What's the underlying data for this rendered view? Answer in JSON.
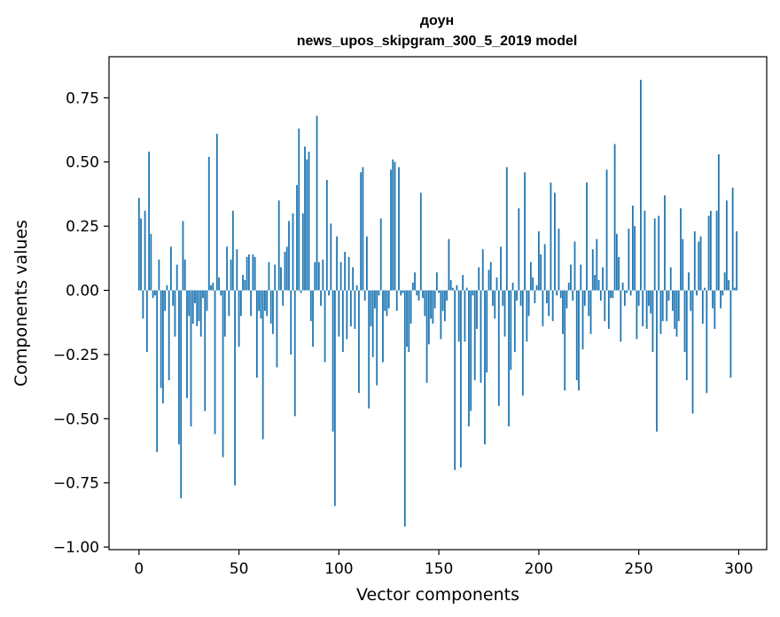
{
  "chart_data": {
    "type": "bar",
    "title": "доун",
    "subtitle": "news_upos_skipgram_300_5_2019 model",
    "xlabel": "Vector components",
    "ylabel": "Components values",
    "xlim": [
      -15,
      314
    ],
    "ylim": [
      -1.01,
      0.91
    ],
    "xticks": [
      0,
      50,
      100,
      150,
      200,
      250,
      300
    ],
    "xtick_labels": [
      "0",
      "50",
      "100",
      "150",
      "200",
      "250",
      "300"
    ],
    "yticks": [
      0.75,
      0.5,
      0.25,
      0.0,
      -0.25,
      -0.5,
      -0.75,
      -1.0
    ],
    "ytick_labels": [
      "0.75",
      "0.50",
      "0.25",
      "0.00",
      "−0.25",
      "−0.50",
      "−0.75",
      "−1.00"
    ],
    "grid": false,
    "color": "#1f77b4",
    "values": [
      0.36,
      0.28,
      -0.11,
      0.31,
      -0.24,
      0.54,
      0.22,
      -0.03,
      -0.02,
      -0.63,
      0.12,
      -0.38,
      -0.44,
      -0.08,
      0.02,
      -0.35,
      0.17,
      -0.06,
      -0.18,
      0.1,
      -0.6,
      -0.81,
      0.27,
      0.12,
      -0.42,
      -0.1,
      -0.53,
      -0.13,
      -0.05,
      -0.14,
      -0.12,
      -0.18,
      -0.03,
      -0.47,
      -0.08,
      0.52,
      0.02,
      0.03,
      -0.56,
      0.61,
      0.05,
      -0.02,
      -0.65,
      -0.18,
      0.17,
      -0.1,
      0.12,
      0.31,
      -0.76,
      0.16,
      -0.22,
      -0.1,
      0.06,
      0.04,
      0.13,
      0.14,
      -0.1,
      0.14,
      0.13,
      -0.34,
      -0.08,
      -0.11,
      -0.58,
      -0.08,
      -0.1,
      0.11,
      -0.13,
      -0.17,
      0.1,
      -0.3,
      0.35,
      0.09,
      -0.06,
      0.15,
      0.17,
      0.27,
      -0.25,
      0.3,
      -0.49,
      0.41,
      0.63,
      -0.01,
      0.3,
      0.56,
      0.51,
      0.54,
      -0.12,
      -0.22,
      0.11,
      0.68,
      0.11,
      -0.06,
      0.12,
      -0.28,
      0.43,
      -0.02,
      0.26,
      -0.55,
      -0.84,
      0.21,
      -0.18,
      0.11,
      -0.24,
      0.15,
      -0.19,
      0.13,
      -0.14,
      0.09,
      -0.15,
      0.02,
      -0.4,
      0.46,
      0.48,
      -0.04,
      0.21,
      -0.46,
      -0.14,
      -0.26,
      -0.07,
      -0.37,
      -0.02,
      0.28,
      -0.28,
      -0.08,
      -0.1,
      -0.07,
      0.47,
      0.51,
      0.5,
      -0.08,
      0.48,
      -0.02,
      -0.01,
      -0.92,
      -0.22,
      -0.24,
      -0.13,
      0.03,
      0.07,
      -0.02,
      -0.04,
      0.38,
      -0.03,
      -0.1,
      -0.36,
      -0.21,
      -0.11,
      -0.13,
      -0.07,
      0.07,
      -0.01,
      -0.19,
      -0.08,
      -0.12,
      -0.04,
      0.2,
      0.04,
      0.01,
      -0.7,
      0.02,
      -0.2,
      -0.69,
      0.06,
      -0.2,
      0.01,
      -0.53,
      -0.47,
      -0.02,
      -0.35,
      -0.15,
      0.09,
      -0.36,
      0.16,
      -0.6,
      -0.32,
      0.08,
      0.11,
      -0.06,
      -0.11,
      0.05,
      -0.45,
      0.17,
      -0.06,
      -0.18,
      0.48,
      -0.53,
      -0.31,
      0.03,
      -0.24,
      -0.04,
      0.32,
      -0.06,
      -0.41,
      0.46,
      -0.2,
      -0.1,
      0.11,
      0.05,
      -0.05,
      0.02,
      0.23,
      0.14,
      -0.14,
      0.18,
      -0.05,
      -0.1,
      0.42,
      -0.12,
      0.38,
      -0.02,
      0.24,
      -0.03,
      -0.17,
      -0.39,
      -0.07,
      0.03,
      0.1,
      -0.04,
      0.19,
      -0.35,
      -0.39,
      0.1,
      -0.23,
      -0.06,
      0.42,
      -0.1,
      -0.17,
      0.16,
      0.06,
      0.2,
      0.04,
      -0.04,
      0.09,
      -0.12,
      0.47,
      -0.15,
      -0.03,
      -0.03,
      0.57,
      0.22,
      0.13,
      -0.2,
      0.03,
      -0.06,
      -0.01,
      0.24,
      -0.02,
      0.33,
      0.25,
      -0.19,
      -0.06,
      0.82,
      -0.14,
      0.31,
      -0.15,
      -0.06,
      -0.09,
      -0.24,
      0.28,
      -0.55,
      0.29,
      -0.17,
      -0.12,
      0.37,
      -0.12,
      -0.04,
      0.09,
      -0.08,
      -0.15,
      -0.18,
      -0.12,
      0.32,
      0.2,
      -0.24,
      -0.35,
      0.07,
      -0.08,
      -0.48,
      0.23,
      -0.02,
      0.19,
      0.21,
      -0.13,
      0.01,
      -0.4,
      0.29,
      0.31,
      -0.07,
      -0.15,
      0.31,
      0.53,
      -0.07,
      -0.02,
      0.07,
      0.35,
      0.04,
      -0.34,
      0.4,
      0.01,
      0.23
    ]
  }
}
